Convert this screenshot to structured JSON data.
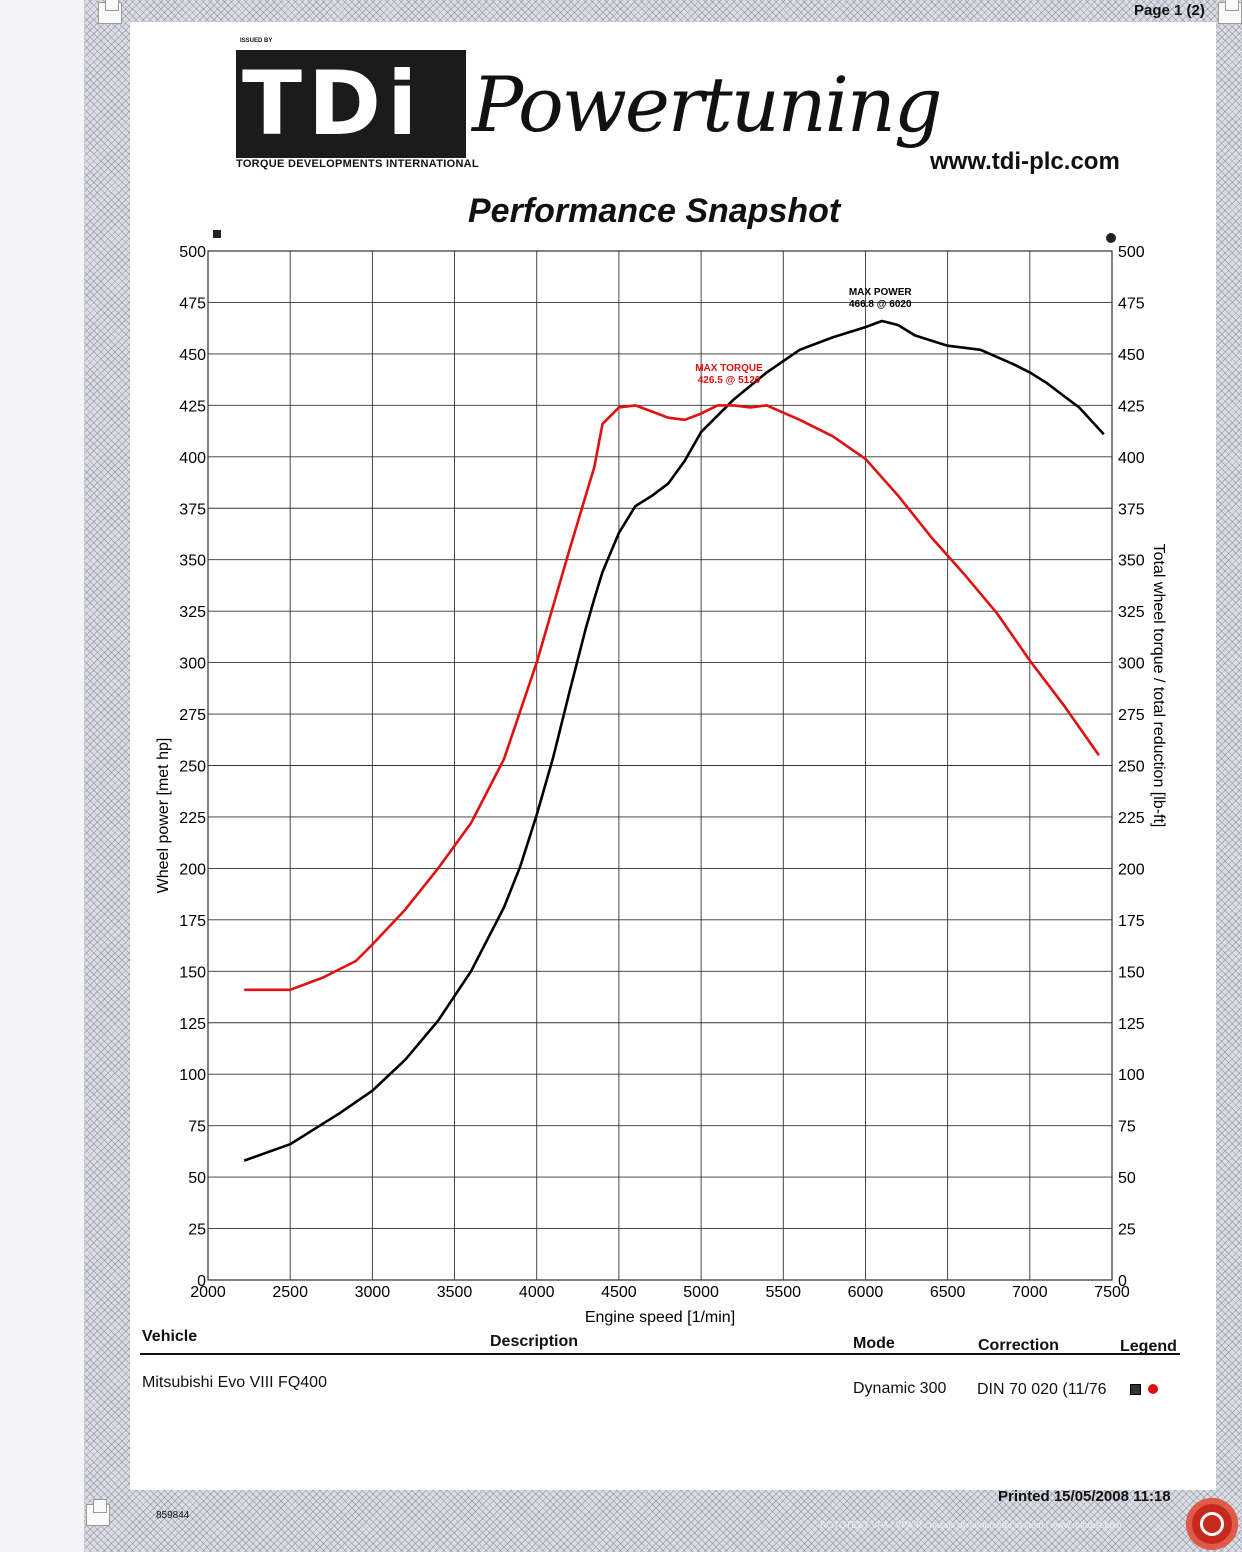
{
  "header": {
    "page_indicator": "Page 1 (2)",
    "issued_by": "ISSUED BY",
    "logo_letters": "TDi",
    "logo_subtitle": "TORQUE DEVELOPMENTS INTERNATIONAL",
    "brand_script": "Powertuning",
    "website": "www.tdi-plc.com",
    "title": "Performance Snapshot"
  },
  "colors": {
    "power": "#000000",
    "torque": "#e01010",
    "grid": "#333333",
    "frame_pattern": "#5a5f78"
  },
  "chart_data": {
    "type": "line",
    "title": "Performance Snapshot",
    "xlabel": "Engine speed [1/min]",
    "ylabel_left": "Wheel power [met hp]",
    "ylabel_right": "Total wheel torque / total reduction [lb-ft]",
    "xlim": [
      2000,
      7500
    ],
    "ylim": [
      0,
      500
    ],
    "x_ticks": [
      2000,
      2500,
      3000,
      3500,
      4000,
      4500,
      5000,
      5500,
      6000,
      6500,
      7000,
      7500
    ],
    "y_ticks": [
      0,
      25,
      50,
      75,
      100,
      125,
      150,
      175,
      200,
      225,
      250,
      275,
      300,
      325,
      350,
      375,
      400,
      425,
      450,
      475,
      500
    ],
    "grid": true,
    "legend_markers": [
      "square",
      "circle"
    ],
    "series": [
      {
        "axis": "left",
        "marker": "square",
        "color": "#000000",
        "x": [
          2220,
          2500,
          2800,
          3000,
          3200,
          3400,
          3600,
          3800,
          3900,
          4000,
          4100,
          4200,
          4300,
          4350,
          4400,
          4500,
          4600,
          4700,
          4800,
          4900,
          5000,
          5200,
          5400,
          5600,
          5800,
          6000,
          6100,
          6200,
          6300,
          6500,
          6700,
          6900,
          7000,
          7100,
          7200,
          7300,
          7450
        ],
        "y": [
          58,
          66,
          81,
          92,
          107,
          126,
          150,
          181,
          201,
          226,
          254,
          286,
          317,
          331,
          344,
          363,
          376,
          381,
          387,
          398,
          412,
          428,
          441,
          452,
          458,
          463,
          466,
          464,
          459,
          454,
          452,
          445,
          441,
          436,
          430,
          424,
          411
        ]
      },
      {
        "axis": "right",
        "marker": "circle",
        "color": "#e01010",
        "x": [
          2220,
          2500,
          2700,
          2900,
          3000,
          3200,
          3400,
          3600,
          3800,
          4000,
          4200,
          4350,
          4400,
          4500,
          4600,
          4700,
          4800,
          4900,
          5000,
          5100,
          5200,
          5300,
          5400,
          5600,
          5800,
          6000,
          6200,
          6400,
          6600,
          6800,
          7000,
          7200,
          7420
        ],
        "y": [
          141,
          141,
          147,
          155,
          163,
          180,
          200,
          222,
          253,
          300,
          355,
          395,
          416,
          424,
          425,
          422,
          419,
          418,
          421,
          425,
          425,
          424,
          425,
          418,
          410,
          399,
          381,
          361,
          343,
          324,
          301,
          280,
          255
        ]
      }
    ],
    "annotations": [
      {
        "text": "MAX POWER",
        "value": "466.8 @ 6020"
      },
      {
        "text": "MAX TORQUE",
        "value": "426.5 @ 5120"
      }
    ]
  },
  "table": {
    "headers": {
      "vehicle": "Vehicle",
      "description": "Description",
      "mode": "Mode",
      "correction": "Correction",
      "legend": "Legend"
    },
    "row": {
      "vehicle": "Mitsubishi Evo VIII FQ400",
      "mode": "Dynamic 300",
      "correction": "DIN 70 020 (11/76"
    }
  },
  "footer": {
    "printed": "Printed 15/05/2008 11:18",
    "code": "859844",
    "system_note": "ROTOTEST VPA / VPA-R chassis dynamometer system | www.rototest.com",
    "roto_logo": "rototest-logo"
  }
}
